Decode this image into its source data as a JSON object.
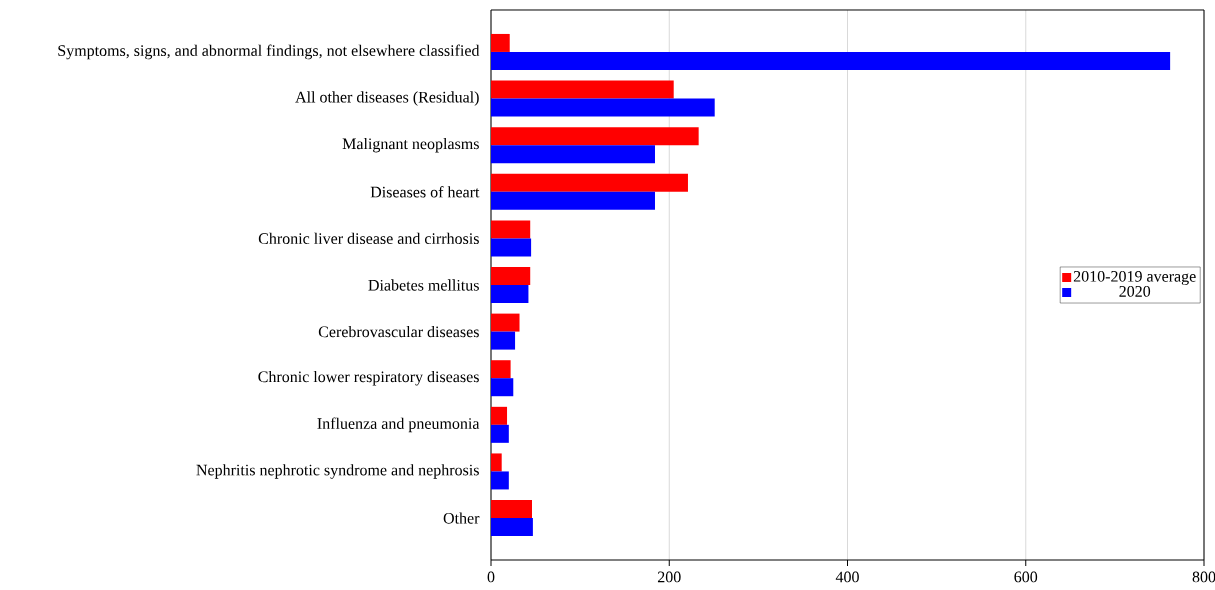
{
  "chart_data": {
    "type": "bar",
    "orientation": "horizontal",
    "categories": [
      "Symptoms, signs, and abnormal findings, not elsewhere classified",
      "All other diseases (Residual)",
      "Malignant neoplasms",
      "Diseases of heart",
      "Chronic liver disease and cirrhosis",
      "Diabetes mellitus",
      "Cerebrovascular diseases",
      "Chronic lower respiratory diseases",
      "Influenza and pneumonia",
      "Nephritis nephrotic syndrome and nephrosis",
      "Other"
    ],
    "series": [
      {
        "name": "2010-2019 average",
        "color": "#ff0000",
        "values": [
          21,
          205,
          233,
          221,
          44,
          44,
          32,
          22,
          18,
          12,
          46
        ]
      },
      {
        "name": "2020",
        "color": "#0000ff",
        "values": [
          762,
          251,
          184,
          184,
          45,
          42,
          27,
          25,
          20,
          20,
          47
        ]
      }
    ],
    "xlim": [
      0,
      800
    ],
    "xticks": [
      0,
      200,
      400,
      600,
      800
    ],
    "grid": "x",
    "legend": "right"
  }
}
